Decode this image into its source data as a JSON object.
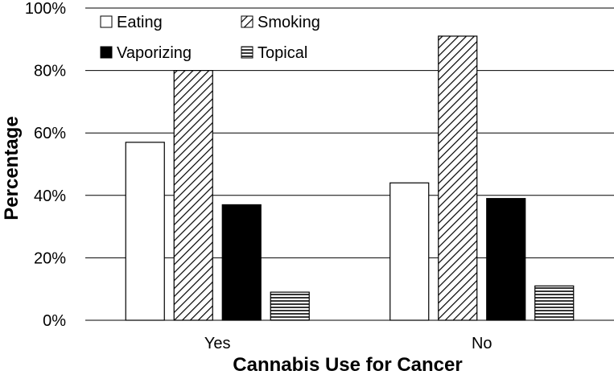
{
  "chart_data": {
    "type": "bar",
    "title": "",
    "xlabel": "Cannabis Use for Cancer",
    "ylabel": "Percentage",
    "categories": [
      "Yes",
      "No"
    ],
    "series": [
      {
        "name": "Eating",
        "values": [
          57,
          44
        ],
        "pattern": "solid",
        "fill": "#ffffff"
      },
      {
        "name": "Smoking",
        "values": [
          80,
          91
        ],
        "pattern": "diagonal-hatch",
        "fill": "#ffffff"
      },
      {
        "name": "Vaporizing",
        "values": [
          37,
          39
        ],
        "pattern": "solid",
        "fill": "#000000"
      },
      {
        "name": "Topical",
        "values": [
          9,
          11
        ],
        "pattern": "horizontal-lines",
        "fill": "#ffffff"
      }
    ],
    "ylim": [
      0,
      100
    ],
    "yticks": [
      0,
      20,
      40,
      60,
      80,
      100
    ],
    "ytick_labels": [
      "0%",
      "20%",
      "40%",
      "60%",
      "80%",
      "100%"
    ],
    "grid": true,
    "legend_position": "top-left"
  },
  "colors": {
    "bar_stroke": "#000000",
    "grid": "#000000",
    "background": "#ffffff"
  }
}
